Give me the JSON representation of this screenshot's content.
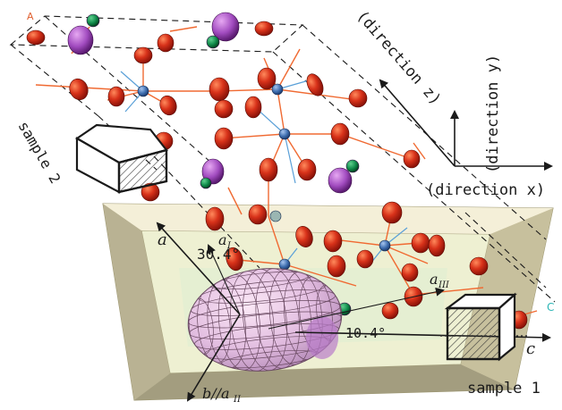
{
  "directions": {
    "x": "(direction x)",
    "y": "(direction y)",
    "z": "(direction z)"
  },
  "samples": {
    "sample1": "sample 1",
    "sample2": "sample 2"
  },
  "axes": {
    "a": "a",
    "aI": "a",
    "aI_sub": "I",
    "aIII": "a",
    "aIII_sub": "III",
    "b_aII": "b//a",
    "b_aII_sub": "II",
    "c": "c",
    "cell_a": "A",
    "cell_c": "C"
  },
  "angles": {
    "alpha": "30.4°",
    "beta": "10.4°"
  },
  "colors": {
    "oxygen": "#d8321a",
    "metal": "#4a78b8",
    "violet": "#a24cc0",
    "green": "#0f8a4a",
    "crystal_plate": "#e9e4c6",
    "bond": "#f06a32"
  }
}
